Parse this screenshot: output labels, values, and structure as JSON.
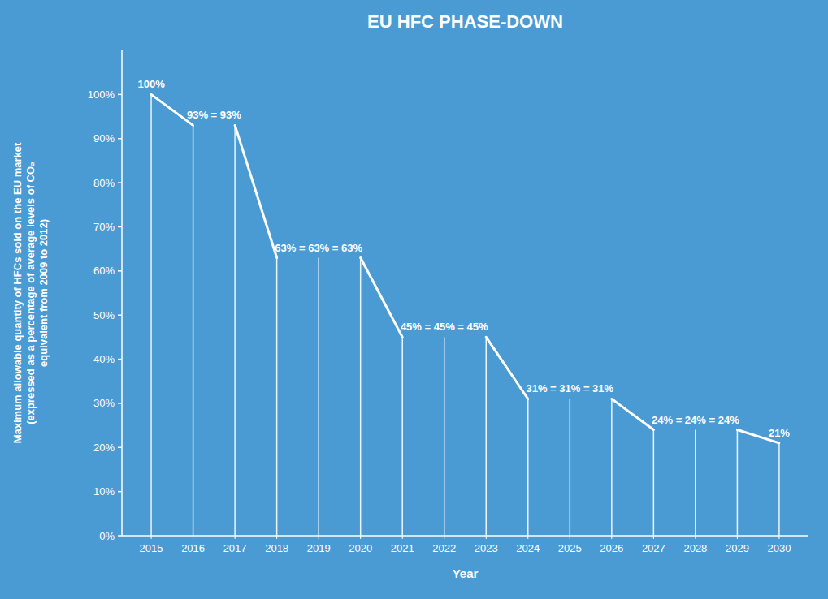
{
  "chart_data": {
    "type": "stem",
    "title": "EU HFC PHASE-DOWN",
    "x_label": "Year",
    "y_label": "Maximum allowable quantity of HFCs sold on the EU market\n(expressed as a percentage of average levels of CO₂\nequivalent from 2009 to 2012)",
    "x": [
      2015,
      2016,
      2017,
      2018,
      2019,
      2020,
      2021,
      2022,
      2023,
      2024,
      2025,
      2026,
      2027,
      2028,
      2029,
      2030
    ],
    "values": [
      100,
      93,
      93,
      63,
      63,
      63,
      45,
      45,
      45,
      31,
      31,
      31,
      24,
      24,
      24,
      21
    ],
    "color": "#FFFFFF",
    "drop_lines": [
      {
        "from_x": 2015,
        "from_y": 100,
        "to_x": 2016,
        "to_y": 93
      },
      {
        "from_x": 2017,
        "from_y": 93,
        "to_x": 2018,
        "to_y": 63
      },
      {
        "from_x": 2020,
        "from_y": 63,
        "to_x": 2021,
        "to_y": 45
      },
      {
        "from_x": 2023,
        "from_y": 45,
        "to_x": 2024,
        "to_y": 31
      },
      {
        "from_x": 2026,
        "from_y": 31,
        "to_x": 2027,
        "to_y": 24
      },
      {
        "from_x": 2029,
        "from_y": 24,
        "to_x": 2030,
        "to_y": 21
      }
    ],
    "annotations": [
      {
        "x": [
          2015
        ],
        "y": 100,
        "text": "100%"
      },
      {
        "x": [
          2016,
          2017
        ],
        "y": 93,
        "text": "93% = 93%"
      },
      {
        "x": [
          2018,
          2019,
          2020
        ],
        "y": 63,
        "text": "63% = 63% = 63%"
      },
      {
        "x": [
          2021,
          2022,
          2023
        ],
        "y": 45,
        "text": "45% = 45% = 45%"
      },
      {
        "x": [
          2024,
          2025,
          2026
        ],
        "y": 31,
        "text": "31% = 31% = 31%"
      },
      {
        "x": [
          2027,
          2028,
          2029
        ],
        "y": 24,
        "text": "24% = 24% = 24%"
      },
      {
        "x": [
          2030
        ],
        "y": 21,
        "text": "21%"
      }
    ],
    "xlim": [
      2014.3,
      2030.7
    ],
    "xticks": [
      2015,
      2016,
      2017,
      2018,
      2019,
      2020,
      2021,
      2022,
      2023,
      2024,
      2025,
      2026,
      2027,
      2028,
      2029,
      2030
    ],
    "ylim": [
      0,
      110
    ],
    "yticks": [
      {
        "value": 0,
        "label": "0%"
      },
      {
        "value": 10,
        "label": "10%"
      },
      {
        "value": 20,
        "label": "20%"
      },
      {
        "value": 30,
        "label": "30%"
      },
      {
        "value": 40,
        "label": "40%"
      },
      {
        "value": 50,
        "label": "50%"
      },
      {
        "value": 60,
        "label": "60%"
      },
      {
        "value": 70,
        "label": "70%"
      },
      {
        "value": 80,
        "label": "80%"
      },
      {
        "value": 90,
        "label": "90%"
      },
      {
        "value": 100,
        "label": "100%"
      }
    ],
    "grid": false
  }
}
